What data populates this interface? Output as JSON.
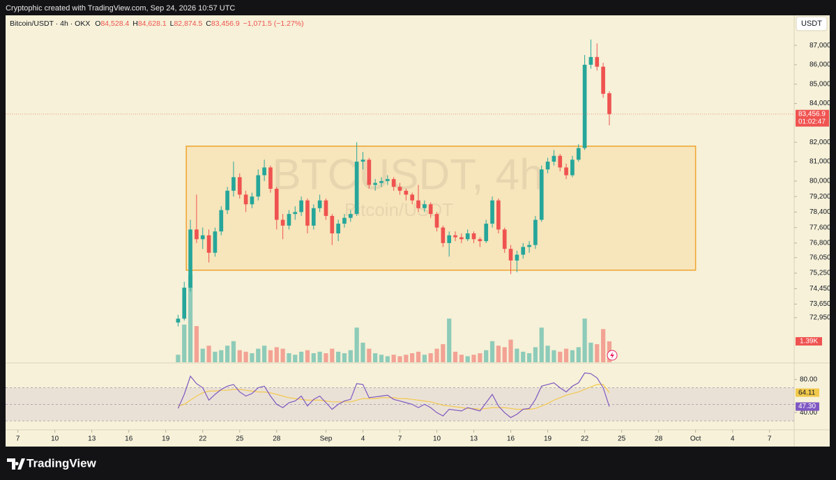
{
  "header": "Cryptophic created with TradingView.com, Sep 24, 2026 10:57 UTC",
  "footer": "TradingView",
  "chart_data": {
    "type": "candlestick",
    "legend": {
      "symbol": "Bitcoin/USDT · 4h · OKX",
      "ohlc": [
        {
          "key": "O",
          "value": "84,528.4"
        },
        {
          "key": "H",
          "value": "84,628.1"
        },
        {
          "key": "L",
          "value": "82,874.5"
        },
        {
          "key": "C",
          "value": "83,456.9"
        }
      ],
      "change": "−1,071.5 (−1.27%)"
    },
    "watermark": "BTCUSDT, 4h",
    "watermark_sub": "Bitcoin/USDT",
    "currency": "USDT",
    "last_price_label": "83,456.9",
    "countdown": "01:02:47",
    "up_color": "#26a69a",
    "down_color": "#ef5350",
    "x": [
      "2026-08-20T00:00",
      "2026-08-20T12:00",
      "2026-08-21T00:00",
      "2026-08-21T12:00",
      "2026-08-22T00:00",
      "2026-08-22T12:00",
      "2026-08-23T00:00",
      "2026-08-23T12:00",
      "2026-08-24T00:00",
      "2026-08-24T12:00",
      "2026-08-25T00:00",
      "2026-08-25T12:00",
      "2026-08-26T00:00",
      "2026-08-26T12:00",
      "2026-08-27T00:00",
      "2026-08-27T12:00",
      "2026-08-28T00:00",
      "2026-08-28T12:00",
      "2026-08-29T00:00",
      "2026-08-29T12:00",
      "2026-08-30T00:00",
      "2026-08-30T12:00",
      "2026-08-31T00:00",
      "2026-08-31T12:00",
      "2026-09-01T00:00",
      "2026-09-01T12:00",
      "2026-09-02T00:00",
      "2026-09-02T12:00",
      "2026-09-03T00:00",
      "2026-09-03T12:00",
      "2026-09-04T00:00",
      "2026-09-04T12:00",
      "2026-09-05T00:00",
      "2026-09-05T12:00",
      "2026-09-06T00:00",
      "2026-09-06T12:00",
      "2026-09-07T00:00",
      "2026-09-07T12:00",
      "2026-09-08T00:00",
      "2026-09-08T12:00",
      "2026-09-09T00:00",
      "2026-09-09T12:00",
      "2026-09-10T00:00",
      "2026-09-10T12:00",
      "2026-09-11T00:00",
      "2026-09-11T12:00",
      "2026-09-12T00:00",
      "2026-09-12T12:00",
      "2026-09-13T00:00",
      "2026-09-13T12:00",
      "2026-09-14T00:00",
      "2026-09-14T12:00",
      "2026-09-15T00:00",
      "2026-09-15T12:00",
      "2026-09-16T00:00",
      "2026-09-16T12:00",
      "2026-09-17T00:00",
      "2026-09-17T12:00",
      "2026-09-18T00:00",
      "2026-09-18T12:00",
      "2026-09-19T00:00",
      "2026-09-19T12:00",
      "2026-09-20T00:00",
      "2026-09-20T12:00",
      "2026-09-21T00:00",
      "2026-09-21T12:00",
      "2026-09-22T00:00",
      "2026-09-22T12:00",
      "2026-09-23T00:00",
      "2026-09-23T12:00",
      "2026-09-24T00:00"
    ],
    "open": [
      72700,
      72900,
      74500,
      77500,
      77000,
      77200,
      76300,
      77400,
      78500,
      79500,
      80200,
      79300,
      78800,
      79200,
      80300,
      80700,
      79600,
      78000,
      77700,
      78300,
      78400,
      79000,
      77700,
      78600,
      79000,
      78200,
      77300,
      77800,
      78100,
      78300,
      81000,
      81100,
      79800,
      79900,
      80000,
      80100,
      79700,
      79500,
      79300,
      79000,
      78600,
      78800,
      78300,
      77600,
      76800,
      77200,
      77100,
      77000,
      77300,
      77000,
      76900,
      77800,
      79000,
      77500,
      76500,
      75900,
      76200,
      76600,
      76700,
      78000,
      80600,
      81000,
      81300,
      80700,
      80300,
      81100,
      81700,
      86000,
      86400,
      85900,
      84528.4
    ],
    "high": [
      73100,
      74800,
      78000,
      79300,
      77600,
      77500,
      77600,
      78700,
      79700,
      81000,
      80400,
      79500,
      79400,
      80600,
      81100,
      80800,
      79700,
      78300,
      78500,
      78700,
      79200,
      79100,
      78800,
      79300,
      79100,
      78300,
      78000,
      78300,
      78500,
      82000,
      81500,
      81200,
      80100,
      80200,
      80300,
      80200,
      79900,
      79600,
      79400,
      79800,
      79000,
      78900,
      78400,
      77700,
      77400,
      77400,
      77300,
      77500,
      77400,
      77100,
      78000,
      79200,
      79100,
      77600,
      76700,
      76400,
      76800,
      76900,
      78200,
      80800,
      81200,
      81600,
      81400,
      80900,
      81300,
      81900,
      86500,
      87300,
      87100,
      86100,
      84628.1
    ],
    "low": [
      72500,
      72800,
      74300,
      76800,
      76500,
      75800,
      76100,
      77200,
      78300,
      79200,
      79100,
      78400,
      78600,
      79000,
      80000,
      79400,
      77500,
      77000,
      77500,
      78000,
      78200,
      77300,
      77500,
      78400,
      78000,
      76700,
      76900,
      77600,
      77900,
      78200,
      80600,
      79600,
      79500,
      79700,
      79800,
      79500,
      79300,
      79000,
      78800,
      78400,
      78400,
      78100,
      77400,
      76600,
      76100,
      76900,
      76800,
      76900,
      76800,
      76600,
      76800,
      77600,
      77300,
      76300,
      75200,
      75300,
      76000,
      76300,
      76500,
      77900,
      80400,
      80800,
      80500,
      80100,
      80200,
      81000,
      81600,
      85800,
      85700,
      84300,
      82874.5
    ],
    "close": [
      72900,
      74500,
      77500,
      77000,
      77200,
      76300,
      77400,
      78500,
      79500,
      80200,
      79300,
      78800,
      79200,
      80300,
      80700,
      79600,
      78000,
      77700,
      78300,
      78400,
      79000,
      77700,
      78600,
      79000,
      78200,
      77300,
      77800,
      78100,
      78300,
      81000,
      81100,
      79800,
      79900,
      80000,
      80100,
      79700,
      79500,
      79300,
      79000,
      78600,
      78800,
      78300,
      77600,
      76800,
      77200,
      77100,
      77000,
      77300,
      77000,
      76900,
      77800,
      79000,
      77500,
      76500,
      75900,
      76200,
      76600,
      76700,
      78000,
      80600,
      81000,
      81300,
      80700,
      80300,
      81100,
      81700,
      86000,
      86400,
      85900,
      84500,
      83456.9
    ],
    "volume": [
      500,
      2500,
      5800,
      2400,
      900,
      1100,
      700,
      800,
      1100,
      1400,
      800,
      700,
      600,
      900,
      1100,
      800,
      1000,
      900,
      600,
      500,
      700,
      800,
      600,
      700,
      600,
      900,
      700,
      600,
      800,
      2300,
      1300,
      900,
      600,
      500,
      400,
      500,
      400,
      500,
      600,
      700,
      500,
      600,
      900,
      1200,
      2900,
      700,
      500,
      400,
      500,
      600,
      800,
      1400,
      1100,
      1000,
      1500,
      900,
      700,
      600,
      1000,
      2300,
      1100,
      800,
      700,
      900,
      800,
      1000,
      2900,
      1300,
      1200,
      2200,
      1390
    ],
    "volume_label": "1.39K",
    "volume_lim": [
      0,
      8000
    ],
    "xlim": [
      "2026-08-06T00:00",
      "2026-10-09T00:00"
    ],
    "xticks": [
      {
        "value": "2026-08-07T00:00",
        "label": "7"
      },
      {
        "value": "2026-08-10T00:00",
        "label": "10"
      },
      {
        "value": "2026-08-13T00:00",
        "label": "13"
      },
      {
        "value": "2026-08-16T00:00",
        "label": "16"
      },
      {
        "value": "2026-08-19T00:00",
        "label": "19"
      },
      {
        "value": "2026-08-22T00:00",
        "label": "22"
      },
      {
        "value": "2026-08-25T00:00",
        "label": "25"
      },
      {
        "value": "2026-08-28T00:00",
        "label": "28"
      },
      {
        "value": "2026-09-01T00:00",
        "label": "Sep"
      },
      {
        "value": "2026-09-04T00:00",
        "label": "4"
      },
      {
        "value": "2026-09-07T00:00",
        "label": "7"
      },
      {
        "value": "2026-09-10T00:00",
        "label": "10"
      },
      {
        "value": "2026-09-13T00:00",
        "label": "13"
      },
      {
        "value": "2026-09-16T00:00",
        "label": "16"
      },
      {
        "value": "2026-09-19T00:00",
        "label": "19"
      },
      {
        "value": "2026-09-22T00:00",
        "label": "22"
      },
      {
        "value": "2026-09-25T00:00",
        "label": "25"
      },
      {
        "value": "2026-09-28T00:00",
        "label": "28"
      },
      {
        "value": "2026-10-01T00:00",
        "label": "Oct"
      },
      {
        "value": "2026-10-04T00:00",
        "label": "4"
      },
      {
        "value": "2026-10-07T00:00",
        "label": "7"
      }
    ],
    "ylim": [
      70650,
      88550
    ],
    "yticks": [
      {
        "value": 87000,
        "label": "87,000.0"
      },
      {
        "value": 86000,
        "label": "86,000.0"
      },
      {
        "value": 85000,
        "label": "85,000.0"
      },
      {
        "value": 84000,
        "label": "84,000.0"
      },
      {
        "value": 82000,
        "label": "82,000.0"
      },
      {
        "value": 81000,
        "label": "81,000.0"
      },
      {
        "value": 80000,
        "label": "80,000.0"
      },
      {
        "value": 79200,
        "label": "79,200.0"
      },
      {
        "value": 78400,
        "label": "78,400.0"
      },
      {
        "value": 77600,
        "label": "77,600.0"
      },
      {
        "value": 76800,
        "label": "76,800.0"
      },
      {
        "value": 76050,
        "label": "76,050.0"
      },
      {
        "value": 75250,
        "label": "75,250.0"
      },
      {
        "value": 74450,
        "label": "74,450.0"
      },
      {
        "value": 73650,
        "label": "73,650.0"
      },
      {
        "value": 72950,
        "label": "72,950.0"
      }
    ],
    "box": {
      "x": [
        "2026-08-20T16:00",
        "2026-10-01T00:00"
      ],
      "y": [
        75400,
        81800
      ]
    },
    "rsi": {
      "color": "#7e57c2",
      "values": [
        45,
        62,
        84,
        75,
        70,
        55,
        62,
        68,
        72,
        74,
        65,
        60,
        63,
        70,
        72,
        60,
        50,
        46,
        52,
        54,
        60,
        48,
        56,
        60,
        52,
        44,
        50,
        54,
        56,
        75,
        74,
        58,
        59,
        60,
        61,
        56,
        54,
        52,
        50,
        46,
        50,
        46,
        40,
        36,
        44,
        43,
        42,
        46,
        44,
        42,
        52,
        62,
        48,
        40,
        34,
        38,
        44,
        45,
        56,
        72,
        74,
        76,
        70,
        65,
        72,
        76,
        88,
        87,
        82,
        70,
        47.3
      ],
      "last_label": "47.30"
    },
    "rsi_ma": {
      "color": "#f2c94c",
      "values": [
        48,
        50,
        55,
        60,
        64,
        66,
        66,
        67,
        67,
        68,
        68,
        67,
        66,
        65,
        65,
        64,
        62,
        60,
        58,
        57,
        56,
        55,
        55,
        55,
        54,
        53,
        53,
        53,
        53,
        55,
        57,
        57,
        57,
        58,
        58,
        58,
        57,
        57,
        56,
        55,
        54,
        53,
        51,
        49,
        48,
        47,
        46,
        45,
        45,
        44,
        45,
        46,
        46,
        46,
        45,
        44,
        44,
        44,
        45,
        48,
        51,
        55,
        58,
        61,
        63,
        65,
        68,
        71,
        74,
        74,
        64.11
      ]
    },
    "rsi_lim": [
      20,
      100
    ],
    "rsi_ticks": [
      {
        "value": 80,
        "label": "80.00"
      },
      {
        "value": 40,
        "label": "40.00"
      }
    ],
    "rsi_bands": [
      30,
      50,
      70
    ]
  }
}
